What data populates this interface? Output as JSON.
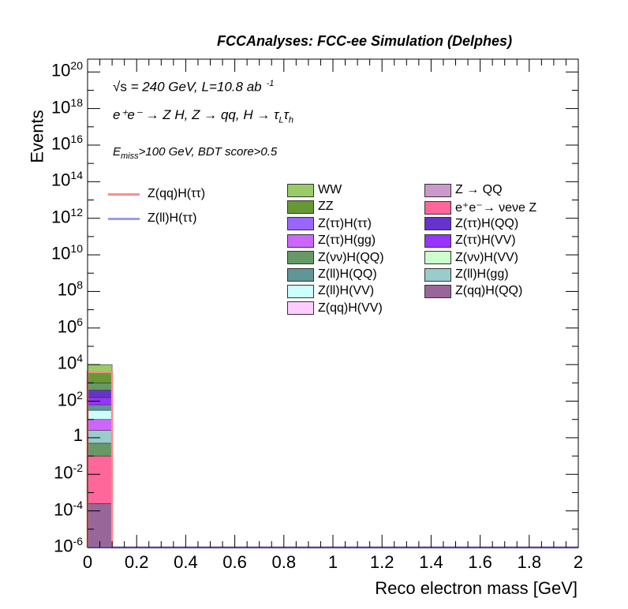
{
  "header": {
    "title": "FCCAnalyses: FCC-ee Simulation (Delphes)"
  },
  "annotations": {
    "line1_sqrt": "√s",
    "line1_rest": " = 240 GeV, L=10.8 ab",
    "line1_exp": "-1",
    "line2": "e⁺e⁻ → Z H, Z → qq, H → τ",
    "line2_sub1": "L",
    "line2_tau": "τ",
    "line2_sub2": "h",
    "line3_E": "E",
    "line3_sub": "miss",
    "line3_rest": ">100 GeV, BDT score>0.5"
  },
  "legend": {
    "signals": [
      {
        "label": "Z(qq)H(ττ)",
        "color": "#ff8c8c"
      },
      {
        "label": "Z(ll)H(ττ)",
        "color": "#9999ff"
      }
    ],
    "backgrounds_col1": [
      {
        "label": "WW",
        "color": "#99cc66"
      },
      {
        "label": "ZZ",
        "color": "#669933"
      },
      {
        "label": "Z(ττ)H(ττ)",
        "color": "#9966ff"
      },
      {
        "label": "Z(ττ)H(gg)",
        "color": "#cc66ff"
      },
      {
        "label": "Z(νν)H(QQ)",
        "color": "#669966"
      },
      {
        "label": "Z(ll)H(QQ)",
        "color": "#5f9696"
      },
      {
        "label": "Z(ll)H(VV)",
        "color": "#ccffff"
      },
      {
        "label": "Z(qq)H(VV)",
        "color": "#ffccff"
      }
    ],
    "backgrounds_col2": [
      {
        "label": "Z → QQ",
        "color": "#cc99cc"
      },
      {
        "label": "e⁺e⁻→ νeνe Z",
        "color": "#ff6699"
      },
      {
        "label": "Z(ττ)H(QQ)",
        "color": "#6633cc"
      },
      {
        "label": "Z(ττ)H(VV)",
        "color": "#9933ff"
      },
      {
        "label": "Z(νν)H(VV)",
        "color": "#ccffcc"
      },
      {
        "label": "Z(ll)H(gg)",
        "color": "#99cccc"
      },
      {
        "label": "Z(qq)H(QQ)",
        "color": "#996699"
      }
    ]
  },
  "chart_data": {
    "type": "bar",
    "xlabel": "Reco electron mass [GeV]",
    "ylabel": "Events",
    "xlim": [
      0,
      2
    ],
    "ylim_log10": [
      -6,
      20.7
    ],
    "yscale": "log",
    "x_ticks": [
      "0",
      "0.2",
      "0.4",
      "0.6",
      "0.8",
      "1",
      "1.2",
      "1.4",
      "1.6",
      "1.8",
      "2"
    ],
    "x_tick_values": [
      0,
      0.2,
      0.4,
      0.6,
      0.8,
      1.0,
      1.2,
      1.4,
      1.6,
      1.8,
      2.0
    ],
    "y_ticks": [
      {
        "base": "10",
        "exp": "-6",
        "log": -6
      },
      {
        "base": "10",
        "exp": "-4",
        "log": -4
      },
      {
        "base": "10",
        "exp": "-2",
        "log": -2
      },
      {
        "base": "1",
        "exp": "",
        "log": 0
      },
      {
        "base": "10",
        "exp": "2",
        "log": 2
      },
      {
        "base": "10",
        "exp": "4",
        "log": 4
      },
      {
        "base": "10",
        "exp": "6",
        "log": 6
      },
      {
        "base": "10",
        "exp": "8",
        "log": 8
      },
      {
        "base": "10",
        "exp": "10",
        "log": 10
      },
      {
        "base": "10",
        "exp": "12",
        "log": 12
      },
      {
        "base": "10",
        "exp": "14",
        "log": 14
      },
      {
        "base": "10",
        "exp": "16",
        "log": 16
      },
      {
        "base": "10",
        "exp": "18",
        "log": 18
      },
      {
        "base": "10",
        "exp": "20",
        "log": 20
      }
    ],
    "bin": [
      0,
      0.1
    ],
    "stack_bottom_log10": -6,
    "stack_tops_log10": [
      {
        "name": "Z(qq)H(QQ)",
        "top": -3.6,
        "color": "#996699"
      },
      {
        "name": "e⁺e⁻→ νeνe Z",
        "top": -1.0,
        "color": "#ff6699"
      },
      {
        "name": "ZZ",
        "top": -0.3,
        "color": "#669966"
      },
      {
        "name": "Z(ll)H(gg)",
        "top": 0.4,
        "color": "#99cccc"
      },
      {
        "name": "Z(ττ)H(gg)",
        "top": 1.0,
        "color": "#cc66ff"
      },
      {
        "name": "Z(ll)H(VV)",
        "top": 1.5,
        "color": "#ccffff"
      },
      {
        "name": "Z(ll)H(QQ)",
        "top": 1.8,
        "color": "#5f9696"
      },
      {
        "name": "Z(ττ)H(VV)",
        "top": 2.2,
        "color": "#9933ff"
      },
      {
        "name": "Z(ττ)H(QQ)",
        "top": 2.6,
        "color": "#6633cc"
      },
      {
        "name": "Z(νν)H(QQ)",
        "top": 3.0,
        "color": "#669966"
      },
      {
        "name": "ZZ",
        "top": 3.6,
        "color": "#669933"
      },
      {
        "name": "WW",
        "top": 4.0,
        "color": "#99cc66"
      }
    ],
    "signal_lines": [
      {
        "name": "Z(qq)H(ττ)",
        "top_log10": 3.6,
        "color": "#ff8c8c"
      },
      {
        "name": "Z(ll)H(ττ)",
        "top_log10": -6,
        "color": "#9999ff"
      }
    ]
  }
}
